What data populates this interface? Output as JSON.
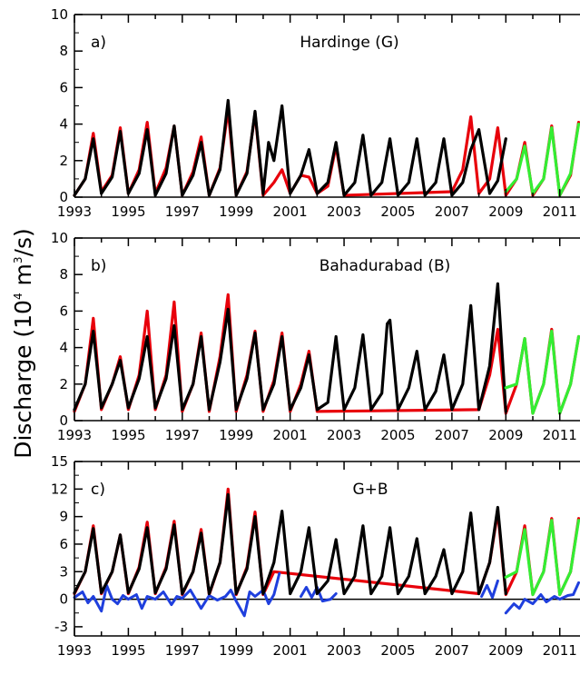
{
  "ylabel": {
    "pre": "Discharge  (10",
    "exp": "4",
    "mid": " m",
    "exp2": "3",
    "post": "/s)"
  },
  "chart_data": [
    {
      "type": "line",
      "tag": "a)",
      "title": "Hardinge (G)",
      "xlim": [
        1993,
        2011.75
      ],
      "ylim": [
        0,
        10
      ],
      "yticks": [
        0,
        2,
        4,
        6,
        8,
        10
      ],
      "xticks": [
        1993,
        1995,
        1997,
        1999,
        2001,
        2003,
        2005,
        2007,
        2009,
        2011
      ],
      "zero_line": false,
      "series": [
        {
          "color": "#e8000b",
          "role": "red",
          "x": [
            1993.0,
            1993.4,
            1993.7,
            1994.0,
            1994.4,
            1994.7,
            1995.0,
            1995.4,
            1995.7,
            1996.0,
            1996.4,
            1996.7,
            1997.0,
            1997.4,
            1997.7,
            1998.0,
            1998.4,
            1998.7,
            1999.0,
            1999.4,
            1999.7,
            2000.0,
            2000.4,
            2000.7,
            2001.0,
            2001.4,
            2001.7,
            2002.0,
            2002.4,
            2002.7,
            2003.0,
            2007.0,
            2007.4,
            2007.7,
            2008.0,
            2008.4,
            2008.7,
            2009.0,
            2009.4,
            2009.7,
            2010.0,
            2010.4,
            2010.7,
            2011.0,
            2011.4,
            2011.7
          ],
          "y": [
            0.1,
            1.0,
            3.5,
            0.3,
            1.2,
            3.8,
            0.2,
            1.5,
            4.1,
            0.2,
            1.6,
            3.9,
            0.1,
            1.4,
            3.3,
            0.1,
            1.6,
            4.8,
            0.1,
            1.4,
            4.6,
            0.1,
            0.8,
            1.5,
            0.2,
            1.2,
            1.1,
            0.2,
            0.6,
            2.8,
            0.1,
            0.3,
            1.5,
            4.4,
            0.2,
            1.0,
            3.8,
            0.1,
            1.0,
            3.0,
            0.1,
            1.0,
            3.9,
            0.1,
            1.2,
            4.1
          ]
        },
        {
          "color": "#000000",
          "role": "black",
          "x": [
            1993.0,
            1993.4,
            1993.7,
            1994.0,
            1994.4,
            1994.7,
            1995.0,
            1995.4,
            1995.7,
            1996.0,
            1996.4,
            1996.7,
            1997.0,
            1997.4,
            1997.7,
            1998.0,
            1998.4,
            1998.7,
            1999.0,
            1999.4,
            1999.7,
            2000.0,
            2000.2,
            2000.4,
            2000.7,
            2001.0,
            2001.4,
            2001.7,
            2002.0,
            2002.4,
            2002.7,
            2003.0,
            2003.4,
            2003.7,
            2004.0,
            2004.4,
            2004.7,
            2005.0,
            2005.4,
            2005.7,
            2006.0,
            2006.4,
            2006.7,
            2007.0,
            2007.4,
            2007.7,
            2008.0,
            2008.4,
            2008.7,
            2009.0
          ],
          "y": [
            0.1,
            1.0,
            3.2,
            0.2,
            1.1,
            3.6,
            0.2,
            1.3,
            3.7,
            0.1,
            1.3,
            3.9,
            0.1,
            1.2,
            3.0,
            0.1,
            1.5,
            5.3,
            0.1,
            1.3,
            4.7,
            0.2,
            3.0,
            2.0,
            5.0,
            0.2,
            1.2,
            2.6,
            0.2,
            0.8,
            3.0,
            0.1,
            0.8,
            3.4,
            0.1,
            0.8,
            3.2,
            0.1,
            0.8,
            3.2,
            0.1,
            0.8,
            3.2,
            0.1,
            0.8,
            2.6,
            3.7,
            0.2,
            0.9,
            3.2
          ]
        },
        {
          "color": "#33ee33",
          "role": "green",
          "x": [
            2009.0,
            2009.4,
            2009.7,
            2010.0,
            2010.4,
            2010.7,
            2011.0,
            2011.4,
            2011.7
          ],
          "y": [
            0.3,
            1.0,
            2.8,
            0.2,
            1.0,
            3.8,
            0.1,
            1.3,
            4.0
          ]
        }
      ]
    },
    {
      "type": "line",
      "tag": "b)",
      "title": "Bahadurabad (B)",
      "xlim": [
        1993,
        2011.75
      ],
      "ylim": [
        0,
        10
      ],
      "yticks": [
        0,
        2,
        4,
        6,
        8,
        10
      ],
      "xticks": [
        1993,
        1995,
        1997,
        1999,
        2001,
        2003,
        2005,
        2007,
        2009,
        2011
      ],
      "zero_line": false,
      "series": [
        {
          "color": "#e8000b",
          "role": "red",
          "x": [
            1993.0,
            1993.4,
            1993.7,
            1994.0,
            1994.4,
            1994.7,
            1995.0,
            1995.4,
            1995.7,
            1996.0,
            1996.4,
            1996.7,
            1997.0,
            1997.4,
            1997.7,
            1998.0,
            1998.4,
            1998.7,
            1999.0,
            1999.4,
            1999.7,
            2000.0,
            2000.4,
            2000.7,
            2001.0,
            2001.4,
            2001.7,
            2002.0,
            2008.0,
            2008.4,
            2008.7,
            2009.0,
            2009.4,
            2009.7,
            2010.0,
            2010.4,
            2010.7,
            2011.0,
            2011.4,
            2011.7
          ],
          "y": [
            0.5,
            2.0,
            5.6,
            0.6,
            2.0,
            3.5,
            0.6,
            2.5,
            6.0,
            0.6,
            2.5,
            6.5,
            0.5,
            2.0,
            4.8,
            0.5,
            3.5,
            6.9,
            0.5,
            2.5,
            4.9,
            0.5,
            2.2,
            4.8,
            0.5,
            2.0,
            3.8,
            0.5,
            0.6,
            2.5,
            5.0,
            0.4,
            2.0,
            4.5,
            0.4,
            2.0,
            5.0,
            0.4,
            2.0,
            4.6
          ]
        },
        {
          "color": "#000000",
          "role": "black",
          "x": [
            1993.0,
            1993.4,
            1993.7,
            1994.0,
            1994.4,
            1994.7,
            1995.0,
            1995.4,
            1995.7,
            1996.0,
            1996.4,
            1996.7,
            1997.0,
            1997.4,
            1997.7,
            1998.0,
            1998.4,
            1998.7,
            1999.0,
            1999.4,
            1999.7,
            2000.0,
            2000.4,
            2000.7,
            2001.0,
            2001.4,
            2001.7,
            2002.0,
            2002.4,
            2002.7,
            2003.0,
            2003.4,
            2003.7,
            2004.0,
            2004.4,
            2004.6,
            2004.7,
            2005.0,
            2005.4,
            2005.7,
            2006.0,
            2006.4,
            2006.7,
            2007.0,
            2007.4,
            2007.7,
            2008.0,
            2008.4,
            2008.7,
            2009.0
          ],
          "y": [
            0.6,
            2.0,
            4.9,
            0.7,
            2.0,
            3.3,
            0.7,
            2.3,
            4.6,
            0.7,
            2.3,
            5.2,
            0.6,
            2.0,
            4.6,
            0.6,
            3.2,
            6.1,
            0.6,
            2.3,
            4.8,
            0.6,
            2.0,
            4.6,
            0.6,
            1.8,
            3.6,
            0.6,
            1.0,
            4.6,
            0.6,
            1.8,
            4.7,
            0.6,
            1.5,
            5.3,
            5.5,
            0.6,
            1.8,
            3.8,
            0.6,
            1.6,
            3.6,
            0.6,
            2.0,
            6.3,
            0.6,
            3.0,
            7.5,
            0.5
          ]
        },
        {
          "color": "#33ee33",
          "role": "green",
          "x": [
            2009.0,
            2009.4,
            2009.7,
            2010.0,
            2010.4,
            2010.7,
            2011.0,
            2011.4,
            2011.7
          ],
          "y": [
            1.8,
            2.0,
            4.5,
            0.4,
            2.0,
            4.9,
            0.4,
            2.0,
            4.6
          ]
        }
      ]
    },
    {
      "type": "line",
      "tag": "c)",
      "title": "G+B",
      "xlim": [
        1993,
        2011.75
      ],
      "ylim": [
        -4,
        15
      ],
      "yticks": [
        -3,
        0,
        3,
        6,
        9,
        12,
        15
      ],
      "xticks": [
        1993,
        1995,
        1997,
        1999,
        2001,
        2003,
        2005,
        2007,
        2009,
        2011
      ],
      "zero_line": true,
      "series": [
        {
          "color": "#e8000b",
          "role": "red",
          "x": [
            1993.0,
            1993.4,
            1993.7,
            1994.0,
            1994.4,
            1994.7,
            1995.0,
            1995.4,
            1995.7,
            1996.0,
            1996.4,
            1996.7,
            1997.0,
            1997.4,
            1997.7,
            1998.0,
            1998.4,
            1998.7,
            1999.0,
            1999.4,
            1999.7,
            2000.0,
            2000.4,
            2008.0,
            2008.4,
            2008.7,
            2009.0,
            2009.4,
            2009.7,
            2010.0,
            2010.4,
            2010.7,
            2011.0,
            2011.4,
            2011.7
          ],
          "y": [
            0.6,
            3.0,
            8.0,
            0.6,
            3.0,
            7.0,
            0.6,
            3.5,
            8.4,
            0.6,
            3.5,
            8.5,
            0.5,
            3.0,
            7.6,
            0.5,
            4.0,
            12.0,
            0.5,
            3.5,
            9.5,
            0.5,
            3.0,
            0.6,
            4.0,
            9.5,
            0.5,
            3.0,
            8.0,
            0.5,
            3.0,
            8.8,
            0.5,
            3.0,
            8.8
          ]
        },
        {
          "color": "#000000",
          "role": "black",
          "x": [
            1993.0,
            1993.4,
            1993.7,
            1994.0,
            1994.4,
            1994.7,
            1995.0,
            1995.4,
            1995.7,
            1996.0,
            1996.4,
            1996.7,
            1997.0,
            1997.4,
            1997.7,
            1998.0,
            1998.4,
            1998.7,
            1999.0,
            1999.4,
            1999.7,
            2000.0,
            2000.4,
            2000.7,
            2001.0,
            2001.4,
            2001.7,
            2002.0,
            2002.4,
            2002.7,
            2003.0,
            2003.4,
            2003.7,
            2004.0,
            2004.4,
            2004.7,
            2005.0,
            2005.4,
            2005.7,
            2006.0,
            2006.4,
            2006.7,
            2007.0,
            2007.4,
            2007.7,
            2008.0,
            2008.4,
            2008.7,
            2009.0
          ],
          "y": [
            0.7,
            3.0,
            7.7,
            0.7,
            3.0,
            7.0,
            0.7,
            3.3,
            7.8,
            0.7,
            3.3,
            8.1,
            0.6,
            3.0,
            7.2,
            0.6,
            4.0,
            11.4,
            0.6,
            3.3,
            9.0,
            0.6,
            4.0,
            9.6,
            0.6,
            3.0,
            7.8,
            0.6,
            2.0,
            6.5,
            0.6,
            2.5,
            8.0,
            0.6,
            2.5,
            7.8,
            0.6,
            2.5,
            6.6,
            0.6,
            2.5,
            5.4,
            0.6,
            3.0,
            9.4,
            0.6,
            4.0,
            10.0,
            0.6
          ]
        },
        {
          "color": "#33ee33",
          "role": "green",
          "x": [
            2009.0,
            2009.4,
            2009.7,
            2010.0,
            2010.4,
            2010.7,
            2011.0,
            2011.4,
            2011.7
          ],
          "y": [
            2.4,
            3.0,
            7.6,
            0.5,
            3.0,
            8.6,
            0.5,
            3.0,
            8.6
          ]
        },
        {
          "color": "#1f3fdd",
          "role": "blue",
          "x": [
            1993.0,
            1993.3,
            1993.5,
            1993.7,
            1994.0,
            1994.2,
            1994.4,
            1994.6,
            1994.8,
            1995.0,
            1995.3,
            1995.5,
            1995.7,
            1996.0,
            1996.3,
            1996.6,
            1996.8,
            1997.0,
            1997.3,
            1997.5,
            1997.7,
            1998.0,
            1998.3,
            1998.6,
            1998.8,
            1999.0,
            1999.3,
            1999.5,
            1999.7,
            2000.0,
            2000.2,
            2000.4,
            2000.6
          ],
          "y": [
            0.2,
            0.8,
            -0.4,
            0.3,
            -1.3,
            1.5,
            0.0,
            -0.5,
            0.4,
            0.0,
            0.5,
            -1.0,
            0.3,
            0.0,
            0.8,
            -0.6,
            0.3,
            0.1,
            1.0,
            0.0,
            -1.0,
            0.4,
            -0.1,
            0.3,
            1.0,
            -0.2,
            -1.8,
            0.8,
            0.3,
            1.0,
            -0.5,
            0.5,
            2.8
          ]
        },
        {
          "color": "#1f3fdd",
          "role": "blue",
          "x": [
            2001.4,
            2001.6,
            2001.8,
            2002.0,
            2002.2,
            2002.5,
            2002.7
          ],
          "y": [
            0.3,
            1.3,
            0.2,
            1.3,
            -0.2,
            0.0,
            0.6
          ]
        },
        {
          "color": "#1f3fdd",
          "role": "blue",
          "x": [
            2008.1,
            2008.3,
            2008.5,
            2008.7
          ],
          "y": [
            0.3,
            1.5,
            0.2,
            2.0
          ]
        },
        {
          "color": "#1f3fdd",
          "role": "blue",
          "x": [
            2009.0,
            2009.3,
            2009.5,
            2009.7,
            2010.0,
            2010.3,
            2010.5,
            2010.8,
            2011.0,
            2011.3,
            2011.5,
            2011.7
          ],
          "y": [
            -1.5,
            -0.5,
            -1.0,
            0.0,
            -0.5,
            0.5,
            -0.3,
            0.3,
            0.0,
            0.4,
            0.5,
            1.8
          ]
        }
      ]
    }
  ]
}
